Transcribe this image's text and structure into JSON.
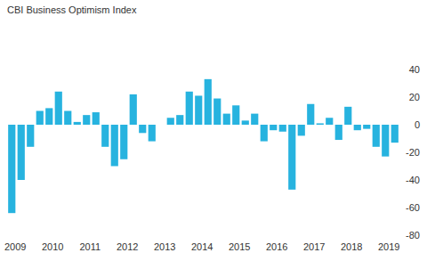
{
  "chart_data": {
    "type": "bar",
    "title": "CBI Business Optimism Index",
    "categories": [
      "2009",
      null,
      null,
      null,
      "2010",
      null,
      null,
      null,
      "2011",
      null,
      null,
      null,
      "2012",
      null,
      null,
      null,
      "2013",
      null,
      null,
      null,
      "2014",
      null,
      null,
      null,
      "2015",
      null,
      null,
      null,
      "2016",
      null,
      null,
      null,
      "2017",
      null,
      null,
      null,
      "2018",
      null,
      null,
      null,
      "2019",
      null
    ],
    "values": [
      -64,
      -40,
      -16,
      10,
      12,
      24,
      10,
      2,
      7,
      9,
      -16,
      -30,
      -25,
      22,
      -6,
      -12,
      0,
      5,
      7,
      24,
      21,
      33,
      19,
      8,
      14,
      3,
      8,
      -12,
      -4,
      -5,
      -47,
      -8,
      15,
      1,
      5,
      -11,
      13,
      -4,
      -3,
      -16,
      -23,
      -13
    ],
    "color": "#27b3df",
    "ylim": [
      -80,
      40
    ],
    "yticks": [
      -80,
      -60,
      -40,
      -20,
      0,
      20,
      40
    ],
    "grid": false
  }
}
